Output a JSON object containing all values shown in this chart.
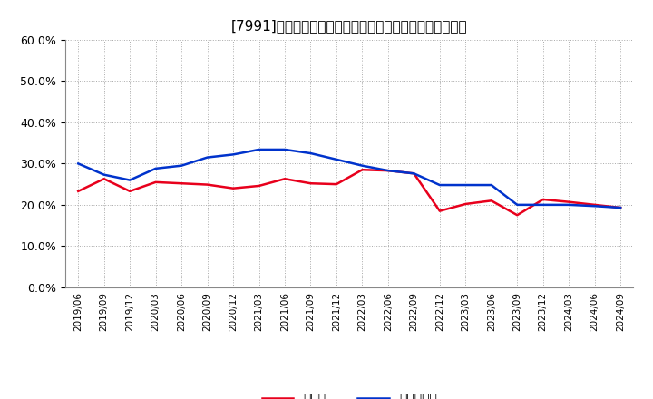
{
  "title": "[7991]　現頲金、有利子負債の総資産に対する比率の推移",
  "x_labels": [
    "2019/06",
    "2019/09",
    "2019/12",
    "2020/03",
    "2020/06",
    "2020/09",
    "2020/12",
    "2021/03",
    "2021/06",
    "2021/09",
    "2021/12",
    "2022/03",
    "2022/06",
    "2022/09",
    "2022/12",
    "2023/03",
    "2023/06",
    "2023/09",
    "2023/12",
    "2024/03",
    "2024/06",
    "2024/09"
  ],
  "cash_values": [
    0.233,
    0.263,
    0.233,
    0.255,
    0.252,
    0.249,
    0.24,
    0.246,
    0.263,
    0.252,
    0.25,
    0.285,
    0.283,
    0.276,
    0.185,
    0.202,
    0.21,
    0.175,
    0.213,
    0.207,
    0.2,
    0.193
  ],
  "debt_values": [
    0.3,
    0.273,
    0.26,
    0.288,
    0.295,
    0.315,
    0.322,
    0.334,
    0.334,
    0.325,
    0.31,
    0.295,
    0.283,
    0.276,
    0.248,
    0.248,
    0.248,
    0.2,
    0.2,
    0.2,
    0.197,
    0.193
  ],
  "cash_color": "#e8001c",
  "debt_color": "#0033cc",
  "ylim": [
    0.0,
    0.6
  ],
  "yticks": [
    0.0,
    0.1,
    0.2,
    0.3,
    0.4,
    0.5,
    0.6
  ],
  "legend_cash": "現頲金",
  "legend_debt": "有利子負債",
  "bg_color": "#ffffff",
  "grid_color": "#aaaaaa",
  "line_width": 1.8,
  "title_prefix": "[7991]　",
  "title_main": "現頲金、有利子負債の総資産に対する比率の推移"
}
